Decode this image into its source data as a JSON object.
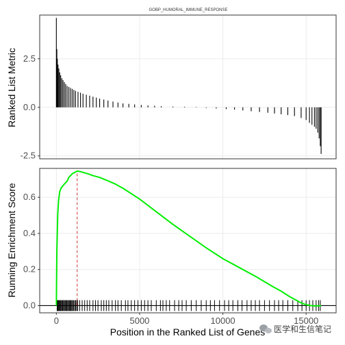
{
  "chart_data": [
    {
      "type": "bar",
      "panel": "top",
      "title": "GOBP_HUMORAL_IMMUNE_RESPONSE",
      "ylabel": "Ranked List Metric",
      "xlim": [
        -1000,
        16800
      ],
      "ylim": [
        -2.65,
        4.75
      ],
      "yticks": [
        -2.5,
        0.0,
        2.5
      ],
      "ytick_labels": [
        "-2.5",
        "0.0",
        "2.5"
      ],
      "grid": true,
      "color": "#000000",
      "positions": [
        0,
        30,
        60,
        100,
        150,
        200,
        260,
        330,
        400,
        480,
        560,
        650,
        750,
        850,
        950,
        1050,
        1150,
        1300,
        1450,
        1600,
        1800,
        2000,
        2200,
        2400,
        2600,
        2850,
        3100,
        3400,
        3700,
        4000,
        4350,
        4700,
        5100,
        5500,
        5900,
        6300,
        7000,
        7700,
        8400,
        9000,
        9600,
        10200,
        10700,
        11200,
        11700,
        12200,
        12700,
        13100,
        13500,
        13900,
        14300,
        14700,
        15000,
        15200,
        15350,
        15500,
        15600,
        15700,
        15780,
        15850,
        15900
      ],
      "values": [
        4.6,
        3.0,
        2.5,
        2.2,
        2.0,
        1.8,
        1.65,
        1.5,
        1.4,
        1.3,
        1.2,
        1.1,
        1.05,
        1.0,
        0.95,
        0.9,
        0.85,
        0.8,
        0.75,
        0.7,
        0.65,
        0.6,
        0.55,
        0.5,
        0.45,
        0.4,
        0.35,
        0.3,
        0.25,
        0.2,
        0.18,
        0.15,
        0.12,
        0.1,
        0.08,
        0.06,
        0.04,
        0.03,
        0.02,
        -0.03,
        -0.06,
        -0.09,
        -0.12,
        -0.16,
        -0.2,
        -0.24,
        -0.28,
        -0.32,
        -0.36,
        -0.4,
        -0.45,
        -0.55,
        -0.65,
        -0.8,
        -0.9,
        -1.0,
        -1.1,
        -1.3,
        -1.6,
        -2.0,
        -2.4
      ]
    },
    {
      "type": "line",
      "panel": "bottom",
      "xlabel": "Position in the Ranked List of Genes",
      "ylabel": "Running Enrichment Score",
      "xlim": [
        -1000,
        16800
      ],
      "ylim": [
        -0.04,
        0.76
      ],
      "xticks": [
        0,
        5000,
        10000,
        15000
      ],
      "xtick_labels": [
        "0",
        "5000",
        "10000",
        "15000"
      ],
      "yticks": [
        0.0,
        0.2,
        0.4,
        0.6
      ],
      "ytick_labels": [
        "0.0",
        "0.2",
        "0.4",
        "0.6"
      ],
      "grid": true,
      "line_color": "#00ee00",
      "x": [
        0,
        30,
        80,
        130,
        200,
        280,
        360,
        450,
        550,
        650,
        750,
        850,
        950,
        1050,
        1150,
        1250,
        1400,
        1600,
        1900,
        2200,
        2600,
        3000,
        3500,
        4000,
        5000,
        6000,
        7000,
        8000,
        9000,
        10000,
        11000,
        12000,
        13000,
        13500,
        14000,
        14400,
        14700,
        14900,
        15100,
        15300,
        15500,
        15700,
        15900
      ],
      "y": [
        0.0,
        0.3,
        0.5,
        0.58,
        0.63,
        0.65,
        0.66,
        0.67,
        0.68,
        0.69,
        0.71,
        0.72,
        0.73,
        0.735,
        0.74,
        0.745,
        0.743,
        0.738,
        0.73,
        0.72,
        0.71,
        0.695,
        0.675,
        0.65,
        0.59,
        0.52,
        0.45,
        0.385,
        0.32,
        0.26,
        0.21,
        0.16,
        0.105,
        0.08,
        0.05,
        0.03,
        0.015,
        0.008,
        0.003,
        0.0,
        -0.002,
        -0.001,
        0.0
      ],
      "peak_x": 1250,
      "peak_line_color": "#cc3333",
      "hline_y": 0.0,
      "hit_positions": [
        50,
        90,
        120,
        160,
        200,
        240,
        280,
        330,
        380,
        430,
        480,
        530,
        580,
        630,
        680,
        730,
        780,
        830,
        880,
        930,
        980,
        1040,
        1100,
        1160,
        1220,
        1280,
        1400,
        1550,
        1700,
        1850,
        2000,
        2200,
        2350,
        2500,
        2700,
        2850,
        3000,
        3150,
        3350,
        3550,
        3700,
        3900,
        4150,
        4300,
        4500,
        4700,
        4900,
        5100,
        5300,
        5500,
        5700,
        6000,
        6250,
        6400,
        6600,
        6800,
        7100,
        7350,
        7550,
        7800,
        8100,
        8400,
        8700,
        9000,
        9250,
        9500,
        9800,
        10100,
        10350,
        10600,
        10900,
        11150,
        11450,
        11700,
        11950,
        12200,
        12500,
        12800,
        13100,
        13350,
        13600,
        13900,
        14200,
        14500,
        14750,
        15000,
        15200,
        15400,
        15600,
        15750,
        15850
      ]
    }
  ],
  "watermark": {
    "icon": "wechat-icon",
    "text": "医学和生信笔记"
  }
}
